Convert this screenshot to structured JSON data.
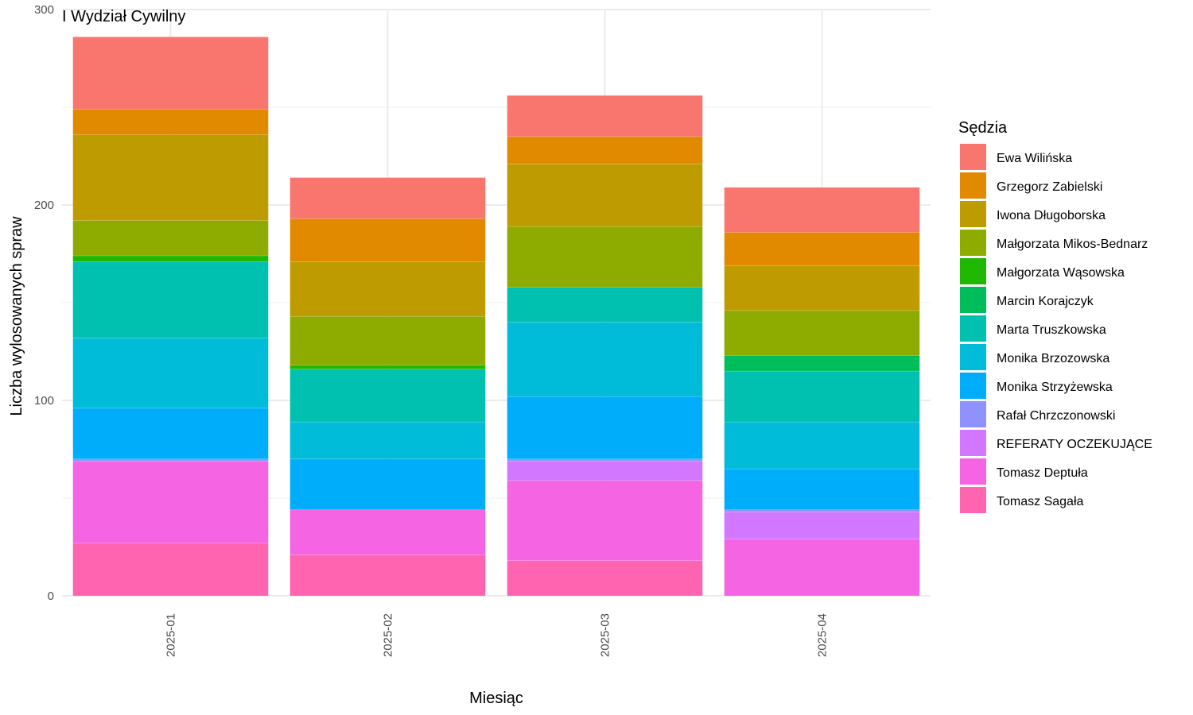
{
  "chart_data": {
    "type": "bar",
    "stacked": true,
    "title": "I Wydział Cywilny",
    "xlabel": "Miesiąc",
    "ylabel": "Liczba wylosowanych spraw",
    "categories": [
      "2025-01",
      "2025-02",
      "2025-03",
      "2025-04"
    ],
    "ylim": [
      0,
      300
    ],
    "yticks": [
      0,
      100,
      200,
      300
    ],
    "grid": true,
    "legend": {
      "title": "Sędzia",
      "position": "right"
    },
    "series": [
      {
        "name": "Tomasz Sagała",
        "color": "#FF64B0",
        "values": [
          27,
          21,
          18,
          0
        ]
      },
      {
        "name": "Tomasz Deptuła",
        "color": "#F564E3",
        "values": [
          42,
          23,
          41,
          29
        ]
      },
      {
        "name": "REFERATY OCZEKUJĄCE",
        "color": "#D277FF",
        "values": [
          0,
          0,
          10,
          14
        ]
      },
      {
        "name": "Rafał Chrzczonowski",
        "color": "#8F91FF",
        "values": [
          1,
          0,
          1,
          1
        ]
      },
      {
        "name": "Monika Strzyżewska",
        "color": "#00ADFA",
        "values": [
          26,
          26,
          32,
          21
        ]
      },
      {
        "name": "Monika Brzozowska",
        "color": "#00BCD8",
        "values": [
          36,
          19,
          38,
          24
        ]
      },
      {
        "name": "Marta Truszkowska",
        "color": "#00C0AF",
        "values": [
          39,
          27,
          18,
          26
        ]
      },
      {
        "name": "Marcin Korajczyk",
        "color": "#00BD5C",
        "values": [
          0,
          0,
          0,
          8
        ]
      },
      {
        "name": "Małgorzata Wąsowska",
        "color": "#1FB700",
        "values": [
          3,
          2,
          0,
          0
        ]
      },
      {
        "name": "Małgorzata Mikos-Bednarz",
        "color": "#8EAB00",
        "values": [
          18,
          25,
          31,
          23
        ]
      },
      {
        "name": "Iwona Długoborska",
        "color": "#BE9C00",
        "values": [
          44,
          28,
          32,
          23
        ]
      },
      {
        "name": "Grzegorz Zabielski",
        "color": "#E18A00",
        "values": [
          13,
          22,
          14,
          17
        ]
      },
      {
        "name": "Ewa Wilińska",
        "color": "#F8766D",
        "values": [
          37,
          21,
          21,
          23
        ]
      }
    ]
  }
}
